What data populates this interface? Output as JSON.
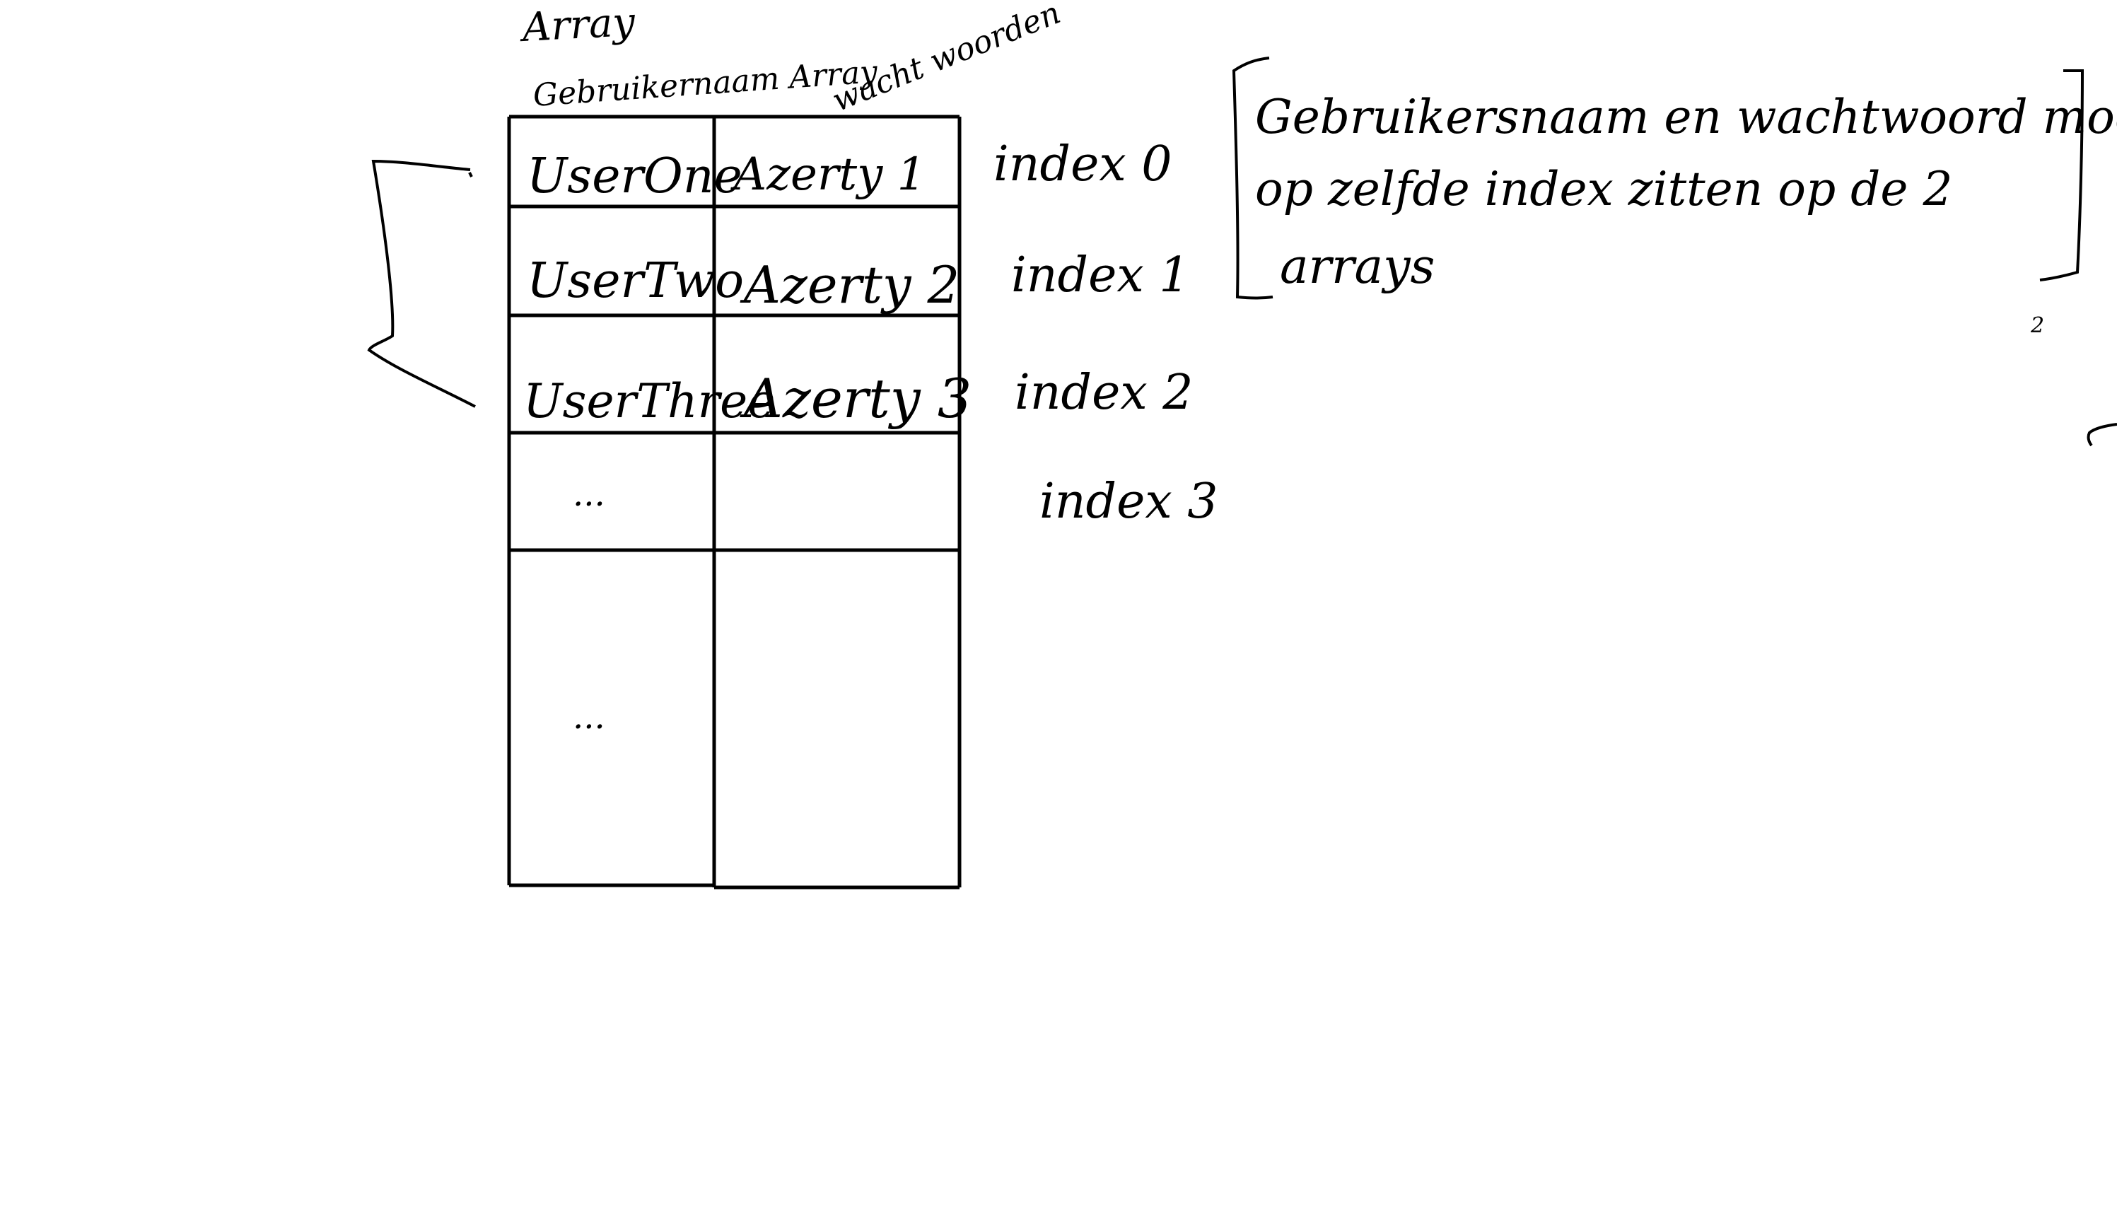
{
  "diagram": {
    "header": {
      "array_label": "Array",
      "username_column_label": "Gebruikernaam Array",
      "password_column_label": "wacht woorden"
    },
    "rows": [
      {
        "username": "UserOne",
        "password": "Azerty 1",
        "index": "index 0"
      },
      {
        "username": "UserTwo",
        "password": "Azerty 2",
        "index": "index 1"
      },
      {
        "username": "UserThree",
        "password": "Azerty 3",
        "index": "index 2"
      },
      {
        "username": "...",
        "password": "",
        "index": "index 3"
      },
      {
        "username": "...",
        "password": "",
        "index": ""
      }
    ],
    "note": {
      "line1": "Gebruikersnaam en wachtwoord moeten",
      "line2": "op zelfde index zitten op de 2",
      "line3": "arrays"
    },
    "stray_mark": "2"
  }
}
